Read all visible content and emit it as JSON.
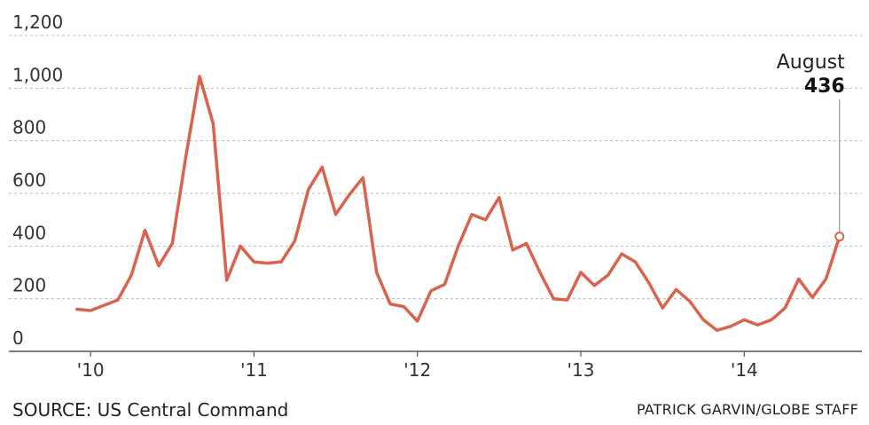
{
  "chart_data": {
    "type": "line",
    "title": "",
    "xlabel": "",
    "ylabel": "",
    "ylim": [
      0,
      1200
    ],
    "y_ticks": [
      0,
      200,
      400,
      600,
      800,
      1000,
      1200
    ],
    "y_tick_labels": [
      "0",
      "200",
      "400",
      "600",
      "800",
      "1,000",
      "1,200"
    ],
    "x_ticks": [
      2010,
      2011,
      2012,
      2013,
      2014
    ],
    "x_tick_labels": [
      "'10",
      "'11",
      "'12",
      "'13",
      "'14"
    ],
    "xlim": [
      2009.5,
      2014.72
    ],
    "grid": true,
    "series": [
      {
        "color": "#d9634c",
        "x": [
          2009.917,
          2010.0,
          2010.083,
          2010.167,
          2010.25,
          2010.333,
          2010.417,
          2010.5,
          2010.583,
          2010.667,
          2010.75,
          2010.833,
          2010.917,
          2011.0,
          2011.083,
          2011.167,
          2011.25,
          2011.333,
          2011.417,
          2011.5,
          2011.583,
          2011.667,
          2011.75,
          2011.833,
          2011.917,
          2012.0,
          2012.083,
          2012.167,
          2012.25,
          2012.333,
          2012.417,
          2012.5,
          2012.583,
          2012.667,
          2012.75,
          2012.833,
          2012.917,
          2013.0,
          2013.083,
          2013.167,
          2013.25,
          2013.333,
          2013.417,
          2013.5,
          2013.583,
          2013.667,
          2013.75,
          2013.833,
          2013.917,
          2014.0,
          2014.083,
          2014.167,
          2014.25,
          2014.333,
          2014.417,
          2014.5,
          2014.583
        ],
        "y": [
          160,
          155,
          175,
          195,
          290,
          460,
          325,
          410,
          740,
          1045,
          865,
          270,
          400,
          340,
          335,
          340,
          420,
          615,
          700,
          520,
          595,
          660,
          300,
          180,
          170,
          115,
          230,
          255,
          400,
          520,
          500,
          585,
          385,
          410,
          300,
          200,
          195,
          300,
          250,
          290,
          370,
          340,
          260,
          165,
          235,
          190,
          120,
          80,
          95,
          120,
          100,
          120,
          165,
          275,
          205,
          275,
          436
        ]
      }
    ],
    "annotation": {
      "label": "August",
      "value": "436"
    }
  },
  "footer": {
    "source": "SOURCE: US Central Command",
    "credit": "PATRICK GARVIN/GLOBE STAFF"
  }
}
